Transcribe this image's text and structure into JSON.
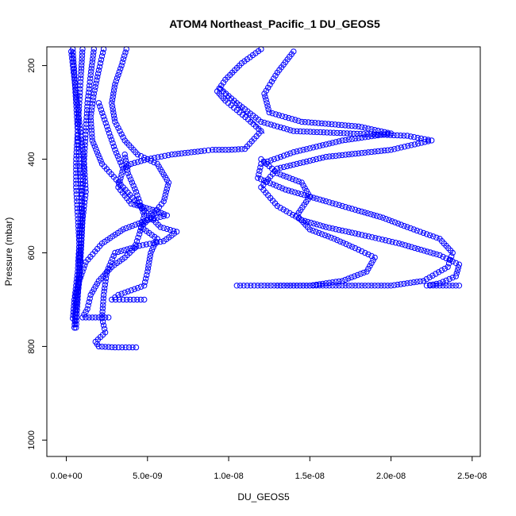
{
  "chart_data": {
    "type": "scatter",
    "title": "ATOM4 Northeast_Pacific_1 DU_GEOS5",
    "xlabel": "DU_GEOS5",
    "ylabel": "Pressure (mbar)",
    "xlim": [
      -1.2e-09,
      2.55e-08
    ],
    "ylim": [
      1035,
      160
    ],
    "y_reversed": true,
    "grid": false,
    "legend": "none",
    "marker_color": "#0000ff",
    "x_ticks": [
      0,
      5e-09,
      1e-08,
      1.5e-08,
      2e-08,
      2.5e-08
    ],
    "x_tick_labels": [
      "0.0e+00",
      "5.0e-09",
      "1.0e-08",
      "1.5e-08",
      "2.0e-08",
      "2.5e-08"
    ],
    "y_ticks": [
      200,
      400,
      600,
      800,
      1000
    ],
    "y_tick_labels": [
      "200",
      "400",
      "600",
      "800",
      "1000"
    ],
    "series": [
      {
        "style": "points",
        "points": [
          [
            4e-10,
            165
          ],
          [
            5e-10,
            220
          ],
          [
            6e-10,
            280
          ],
          [
            7e-10,
            340
          ],
          [
            8e-10,
            400
          ],
          [
            9e-10,
            460
          ],
          [
            1e-09,
            520
          ],
          [
            9e-10,
            580
          ],
          [
            8e-10,
            640
          ],
          [
            6e-10,
            700
          ],
          [
            5e-10,
            760
          ]
        ]
      },
      {
        "style": "points",
        "points": [
          [
            1e-09,
            165
          ],
          [
            9e-10,
            220
          ],
          [
            8e-10,
            280
          ],
          [
            7e-10,
            340
          ],
          [
            6e-10,
            400
          ],
          [
            6e-10,
            460
          ],
          [
            7e-10,
            520
          ],
          [
            8e-10,
            580
          ],
          [
            7e-10,
            640
          ],
          [
            5e-10,
            700
          ],
          [
            4e-10,
            740
          ]
        ]
      },
      {
        "style": "points",
        "points": [
          [
            3e-10,
            170
          ],
          [
            5e-10,
            230
          ],
          [
            7e-10,
            290
          ],
          [
            9e-10,
            350
          ],
          [
            1.1e-09,
            410
          ],
          [
            1.2e-09,
            470
          ],
          [
            1e-09,
            530
          ],
          [
            9e-10,
            600
          ],
          [
            8e-10,
            660
          ],
          [
            6e-10,
            720
          ],
          [
            5e-10,
            760
          ]
        ]
      },
      {
        "style": "points",
        "points": [
          [
            1.7e-09,
            165
          ],
          [
            1.5e-09,
            220
          ],
          [
            1.3e-09,
            280
          ],
          [
            1.2e-09,
            340
          ],
          [
            1.1e-09,
            400
          ],
          [
            1e-09,
            460
          ],
          [
            9e-10,
            520
          ],
          [
            8e-10,
            580
          ],
          [
            8e-10,
            640
          ],
          [
            7e-10,
            700
          ],
          [
            6e-10,
            760
          ]
        ]
      },
      {
        "style": "points",
        "points": [
          [
            2.3e-09,
            165
          ],
          [
            2e-09,
            210
          ],
          [
            1.7e-09,
            260
          ],
          [
            1.5e-09,
            310
          ],
          [
            1.6e-09,
            360
          ],
          [
            2.2e-09,
            410
          ],
          [
            3.5e-09,
            460
          ],
          [
            4.8e-09,
            510
          ],
          [
            5.8e-09,
            545
          ],
          [
            6.8e-09,
            555
          ],
          [
            6e-09,
            575
          ],
          [
            4.5e-09,
            585
          ],
          [
            3e-09,
            600
          ],
          [
            2.5e-09,
            640
          ],
          [
            2.3e-09,
            690
          ],
          [
            2.2e-09,
            740
          ],
          [
            2.4e-09,
            770
          ],
          [
            1.8e-09,
            790
          ],
          [
            2e-09,
            800
          ],
          [
            3e-09,
            802
          ],
          [
            4.3e-09,
            802
          ]
        ]
      },
      {
        "style": "points",
        "points": [
          [
            3.7e-09,
            165
          ],
          [
            3.4e-09,
            200
          ],
          [
            3e-09,
            240
          ],
          [
            2.8e-09,
            280
          ],
          [
            3e-09,
            320
          ],
          [
            3.6e-09,
            360
          ],
          [
            4.4e-09,
            390
          ],
          [
            5.6e-09,
            410
          ],
          [
            6.3e-09,
            450
          ],
          [
            6e-09,
            490
          ],
          [
            5.3e-09,
            520
          ],
          [
            4.6e-09,
            545
          ],
          [
            5.6e-09,
            570
          ],
          [
            5.2e-09,
            600
          ],
          [
            5e-09,
            640
          ],
          [
            4.8e-09,
            670
          ],
          [
            3.2e-09,
            690
          ],
          [
            2.8e-09,
            700
          ],
          [
            3.5e-09,
            700
          ],
          [
            4.8e-09,
            700
          ]
        ]
      },
      {
        "style": "points",
        "points": [
          [
            2e-09,
            280
          ],
          [
            2.5e-09,
            330
          ],
          [
            3e-09,
            380
          ],
          [
            3.5e-09,
            420
          ],
          [
            3.2e-09,
            460
          ],
          [
            4e-09,
            495
          ],
          [
            5.5e-09,
            510
          ],
          [
            6.2e-09,
            520
          ],
          [
            5e-09,
            530
          ],
          [
            3.5e-09,
            550
          ],
          [
            2.2e-09,
            580
          ],
          [
            1.2e-09,
            620
          ],
          [
            8e-10,
            660
          ],
          [
            5e-10,
            700
          ]
        ]
      },
      {
        "style": "points",
        "points": [
          [
            3.6e-09,
            390
          ],
          [
            3.8e-09,
            430
          ],
          [
            4.3e-09,
            470
          ],
          [
            4.8e-09,
            520
          ],
          [
            4.5e-09,
            560
          ],
          [
            4.2e-09,
            590
          ],
          [
            3.6e-09,
            610
          ],
          [
            2.8e-09,
            630
          ],
          [
            2e-09,
            660
          ],
          [
            1.5e-09,
            690
          ],
          [
            1.3e-09,
            720
          ],
          [
            1e-09,
            738
          ],
          [
            1.8e-09,
            738
          ],
          [
            2.6e-09,
            738
          ]
        ]
      },
      {
        "style": "points",
        "points": [
          [
            1.2e-08,
            165
          ],
          [
            1.08e-08,
            195
          ],
          [
            9.8e-09,
            230
          ],
          [
            9.3e-09,
            255
          ],
          [
            9.8e-09,
            275
          ],
          [
            1.05e-08,
            295
          ],
          [
            1.12e-08,
            315
          ],
          [
            1.2e-08,
            340
          ],
          [
            1.1e-08,
            378
          ],
          [
            1e-08,
            380
          ],
          [
            9e-09,
            380
          ],
          [
            8.5e-09,
            382
          ],
          [
            6.5e-09,
            390
          ],
          [
            5e-09,
            400
          ],
          [
            4e-09,
            410
          ],
          [
            3.5e-09,
            420
          ]
        ]
      },
      {
        "style": "points",
        "points": [
          [
            9.5e-09,
            250
          ],
          [
            1.05e-08,
            280
          ],
          [
            1.2e-08,
            320
          ],
          [
            1.4e-08,
            340
          ],
          [
            1.75e-08,
            345
          ],
          [
            2.1e-08,
            350
          ],
          [
            2.25e-08,
            360
          ],
          [
            2e-08,
            380
          ],
          [
            1.6e-08,
            395
          ],
          [
            1.3e-08,
            420
          ],
          [
            1.2e-08,
            460
          ],
          [
            1.3e-08,
            500
          ],
          [
            1.45e-08,
            530
          ],
          [
            1.6e-08,
            545
          ],
          [
            1.8e-08,
            560
          ],
          [
            2.05e-08,
            580
          ],
          [
            2.3e-08,
            605
          ],
          [
            2.42e-08,
            625
          ],
          [
            2.4e-08,
            650
          ],
          [
            2.3e-08,
            665
          ],
          [
            2.22e-08,
            670
          ],
          [
            2.42e-08,
            670
          ]
        ]
      },
      {
        "style": "points",
        "points": [
          [
            1.4e-08,
            170
          ],
          [
            1.3e-08,
            215
          ],
          [
            1.22e-08,
            260
          ],
          [
            1.25e-08,
            300
          ],
          [
            1.45e-08,
            320
          ],
          [
            1.8e-08,
            330
          ],
          [
            2e-08,
            345
          ],
          [
            1.7e-08,
            360
          ],
          [
            1.4e-08,
            385
          ],
          [
            1.2e-08,
            410
          ],
          [
            1.18e-08,
            440
          ],
          [
            1.35e-08,
            465
          ],
          [
            1.6e-08,
            490
          ],
          [
            1.8e-08,
            510
          ],
          [
            1.95e-08,
            525
          ],
          [
            2.1e-08,
            545
          ],
          [
            2.3e-08,
            570
          ],
          [
            2.38e-08,
            600
          ],
          [
            2.35e-08,
            630
          ],
          [
            2.2e-08,
            660
          ],
          [
            2e-08,
            670
          ],
          [
            1.7e-08,
            670
          ],
          [
            1.4e-08,
            670
          ],
          [
            1.2e-08,
            670
          ],
          [
            1.05e-08,
            670
          ]
        ]
      },
      {
        "style": "points",
        "points": [
          [
            1.2e-08,
            400
          ],
          [
            1.3e-08,
            430
          ],
          [
            1.45e-08,
            450
          ],
          [
            1.5e-08,
            480
          ],
          [
            1.42e-08,
            520
          ],
          [
            1.5e-08,
            550
          ],
          [
            1.65e-08,
            570
          ],
          [
            1.78e-08,
            590
          ],
          [
            1.9e-08,
            610
          ],
          [
            1.85e-08,
            640
          ],
          [
            1.7e-08,
            660
          ],
          [
            1.5e-08,
            670
          ],
          [
            1.3e-08,
            670
          ]
        ]
      },
      {
        "style": "line",
        "points": [
          [
            9.5e-09,
            245
          ],
          [
            1.22e-08,
            345
          ]
        ]
      }
    ]
  }
}
